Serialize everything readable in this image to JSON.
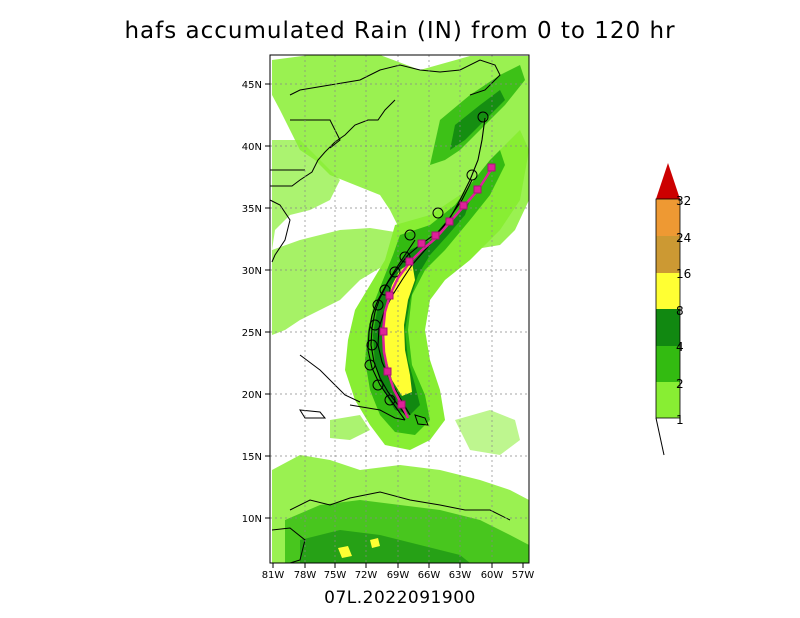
{
  "title": "hafs accumulated Rain (IN) from 0 to 120 hr",
  "footer": "07L.2022091900",
  "map": {
    "lat_ticks": [
      "45N",
      "40N",
      "35N",
      "30N",
      "25N",
      "20N",
      "15N",
      "10N"
    ],
    "lon_ticks": [
      "81W",
      "78W",
      "75W",
      "72W",
      "69W",
      "66W",
      "63W",
      "60W",
      "57W"
    ],
    "lon_range": [
      -81,
      -57
    ],
    "lat_range": [
      6.5,
      47.5
    ]
  },
  "colorbar": {
    "labels": [
      "1",
      "2",
      "4",
      "8",
      "16",
      "24",
      "32"
    ],
    "colors": [
      "#88ee33",
      "#33bb11",
      "#118811",
      "#ffff33",
      "#cc9933",
      "#ee9933",
      "#cc0000"
    ]
  },
  "legend_colors": {
    "light_rain": "#88ee33",
    "moderate_rain": "#33bb11",
    "heavy_rain": "#118811",
    "very_heavy_rain": "#ffff33",
    "track_forecast": "#dd2299",
    "track_model": "#000000"
  }
}
